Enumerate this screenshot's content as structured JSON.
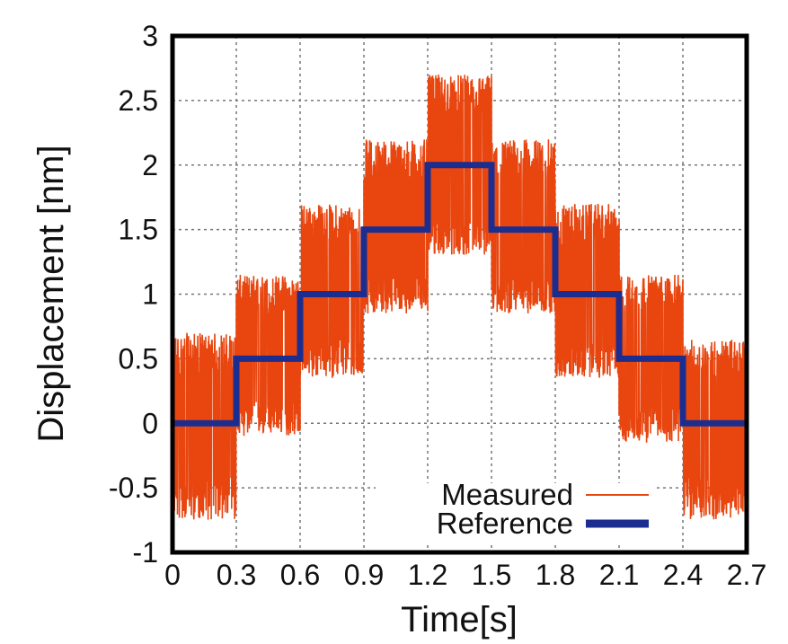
{
  "chart_data": {
    "type": "line",
    "title": "",
    "xlabel": "Time[s]",
    "ylabel": "Displacement [nm]",
    "xlim": [
      0,
      2.7
    ],
    "ylim": [
      -1,
      3
    ],
    "xticks": [
      "0",
      "0.3",
      "0.6",
      "0.9",
      "1.2",
      "1.5",
      "1.8",
      "2.1",
      "2.4",
      "2.7"
    ],
    "yticks": [
      "-1",
      "-0.5",
      "0",
      "0.5",
      "1",
      "1.5",
      "2",
      "2.5",
      "3"
    ],
    "grid": true,
    "legend_position": "bottom-center",
    "series": [
      {
        "name": "Measured",
        "color": "#e8450f",
        "style": "noisy",
        "segments": [
          {
            "x_start": 0.0,
            "x_end": 0.3,
            "mean": 0.0,
            "low": -0.75,
            "high": 0.7
          },
          {
            "x_start": 0.3,
            "x_end": 0.6,
            "mean": 0.5,
            "low": -0.1,
            "high": 1.15
          },
          {
            "x_start": 0.6,
            "x_end": 0.9,
            "mean": 1.0,
            "low": 0.35,
            "high": 1.7
          },
          {
            "x_start": 0.9,
            "x_end": 1.2,
            "mean": 1.5,
            "low": 0.85,
            "high": 2.2
          },
          {
            "x_start": 1.2,
            "x_end": 1.5,
            "mean": 2.0,
            "low": 1.3,
            "high": 2.7
          },
          {
            "x_start": 1.5,
            "x_end": 1.8,
            "mean": 1.5,
            "low": 0.85,
            "high": 2.2
          },
          {
            "x_start": 1.8,
            "x_end": 2.1,
            "mean": 1.0,
            "low": 0.35,
            "high": 1.7
          },
          {
            "x_start": 2.1,
            "x_end": 2.4,
            "mean": 0.5,
            "low": -0.15,
            "high": 1.15
          },
          {
            "x_start": 2.4,
            "x_end": 2.7,
            "mean": 0.0,
            "low": -0.75,
            "high": 0.65
          }
        ]
      },
      {
        "name": "Reference",
        "color": "#1b2d8f",
        "style": "step",
        "x": [
          0,
          0.3,
          0.3,
          0.6,
          0.6,
          0.9,
          0.9,
          1.2,
          1.2,
          1.5,
          1.5,
          1.8,
          1.8,
          2.1,
          2.1,
          2.4,
          2.4,
          2.7
        ],
        "y": [
          0,
          0,
          0.5,
          0.5,
          1.0,
          1.0,
          1.5,
          1.5,
          2.0,
          2.0,
          1.5,
          1.5,
          1.0,
          1.0,
          0.5,
          0.5,
          0,
          0
        ]
      }
    ]
  }
}
